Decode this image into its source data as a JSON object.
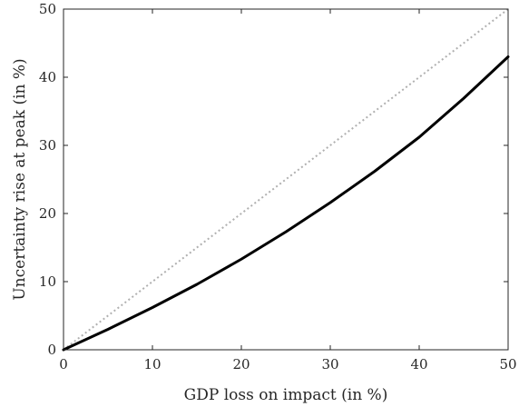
{
  "chart_data": {
    "type": "line",
    "title": "",
    "xlabel": "GDP loss on impact (in %)",
    "ylabel": "Uncertainty rise at peak (in %)",
    "xlim": [
      0,
      50
    ],
    "ylim": [
      0,
      50
    ],
    "xticks": [
      "0",
      "10",
      "20",
      "30",
      "40",
      "50"
    ],
    "yticks": [
      "0",
      "10",
      "20",
      "30",
      "40",
      "50"
    ],
    "grid": false,
    "legend": "none",
    "series": [
      {
        "style": "solid",
        "color": "#000000",
        "x": [
          0,
          5,
          10,
          15,
          20,
          25,
          30,
          35,
          40,
          45,
          50
        ],
        "y": [
          0,
          3.0,
          6.2,
          9.6,
          13.3,
          17.3,
          21.6,
          26.2,
          31.2,
          36.9,
          43.0
        ]
      },
      {
        "style": "dotted",
        "color": "#b0b0b0",
        "x": [
          0,
          50
        ],
        "y": [
          0,
          50
        ]
      }
    ]
  }
}
